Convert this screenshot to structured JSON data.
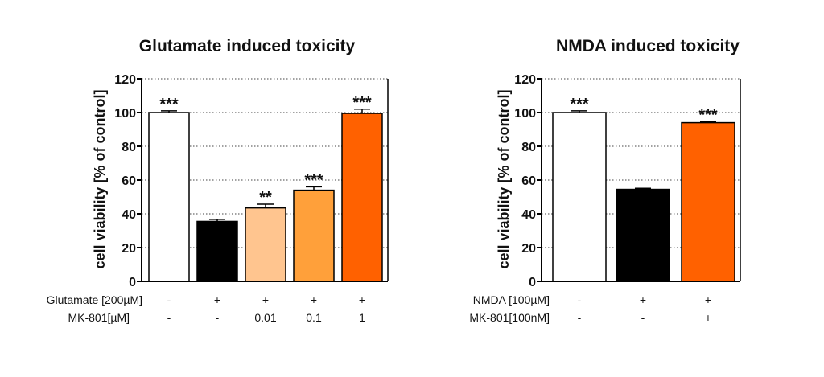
{
  "chart_data": [
    {
      "type": "bar",
      "title": "Glutamate induced toxicity",
      "ylabel": "cell viability [% of control]",
      "ylim": [
        0,
        120
      ],
      "yticks": [
        "0",
        "20",
        "40",
        "60",
        "80",
        "100",
        "120"
      ],
      "grid": "dotted horizontal",
      "values": [
        100,
        35.5,
        43.5,
        54,
        99.5
      ],
      "errors": [
        1,
        1.2,
        2.2,
        2,
        2.5
      ],
      "significance": [
        "***",
        "",
        "**",
        "***",
        "***"
      ],
      "colors": [
        "#ffffff",
        "#000000",
        "#ffc58f",
        "#ffa03a",
        "#ff6100"
      ],
      "conditions": [
        {
          "label": "Glutamate [200µM]",
          "values": [
            "-",
            "+",
            "+",
            "+",
            "+"
          ]
        },
        {
          "label": "MK-801[µM]",
          "values": [
            "-",
            "-",
            "0.01",
            "0.1",
            "1"
          ]
        }
      ]
    },
    {
      "type": "bar",
      "title": "NMDA induced toxicity",
      "ylabel": "cell viability [% of control]",
      "ylim": [
        0,
        120
      ],
      "yticks": [
        "0",
        "20",
        "40",
        "60",
        "80",
        "100",
        "120"
      ],
      "grid": "dotted horizontal",
      "values": [
        100,
        54.5,
        94
      ],
      "errors": [
        1,
        0.6,
        0.6
      ],
      "significance": [
        "***",
        "",
        "***"
      ],
      "colors": [
        "#ffffff",
        "#000000",
        "#ff6100"
      ],
      "conditions": [
        {
          "label": "NMDA [100µM]",
          "values": [
            "-",
            "+",
            "+"
          ]
        },
        {
          "label": "MK-801[100nM]",
          "values": [
            "-",
            "-",
            "+"
          ]
        }
      ]
    }
  ]
}
